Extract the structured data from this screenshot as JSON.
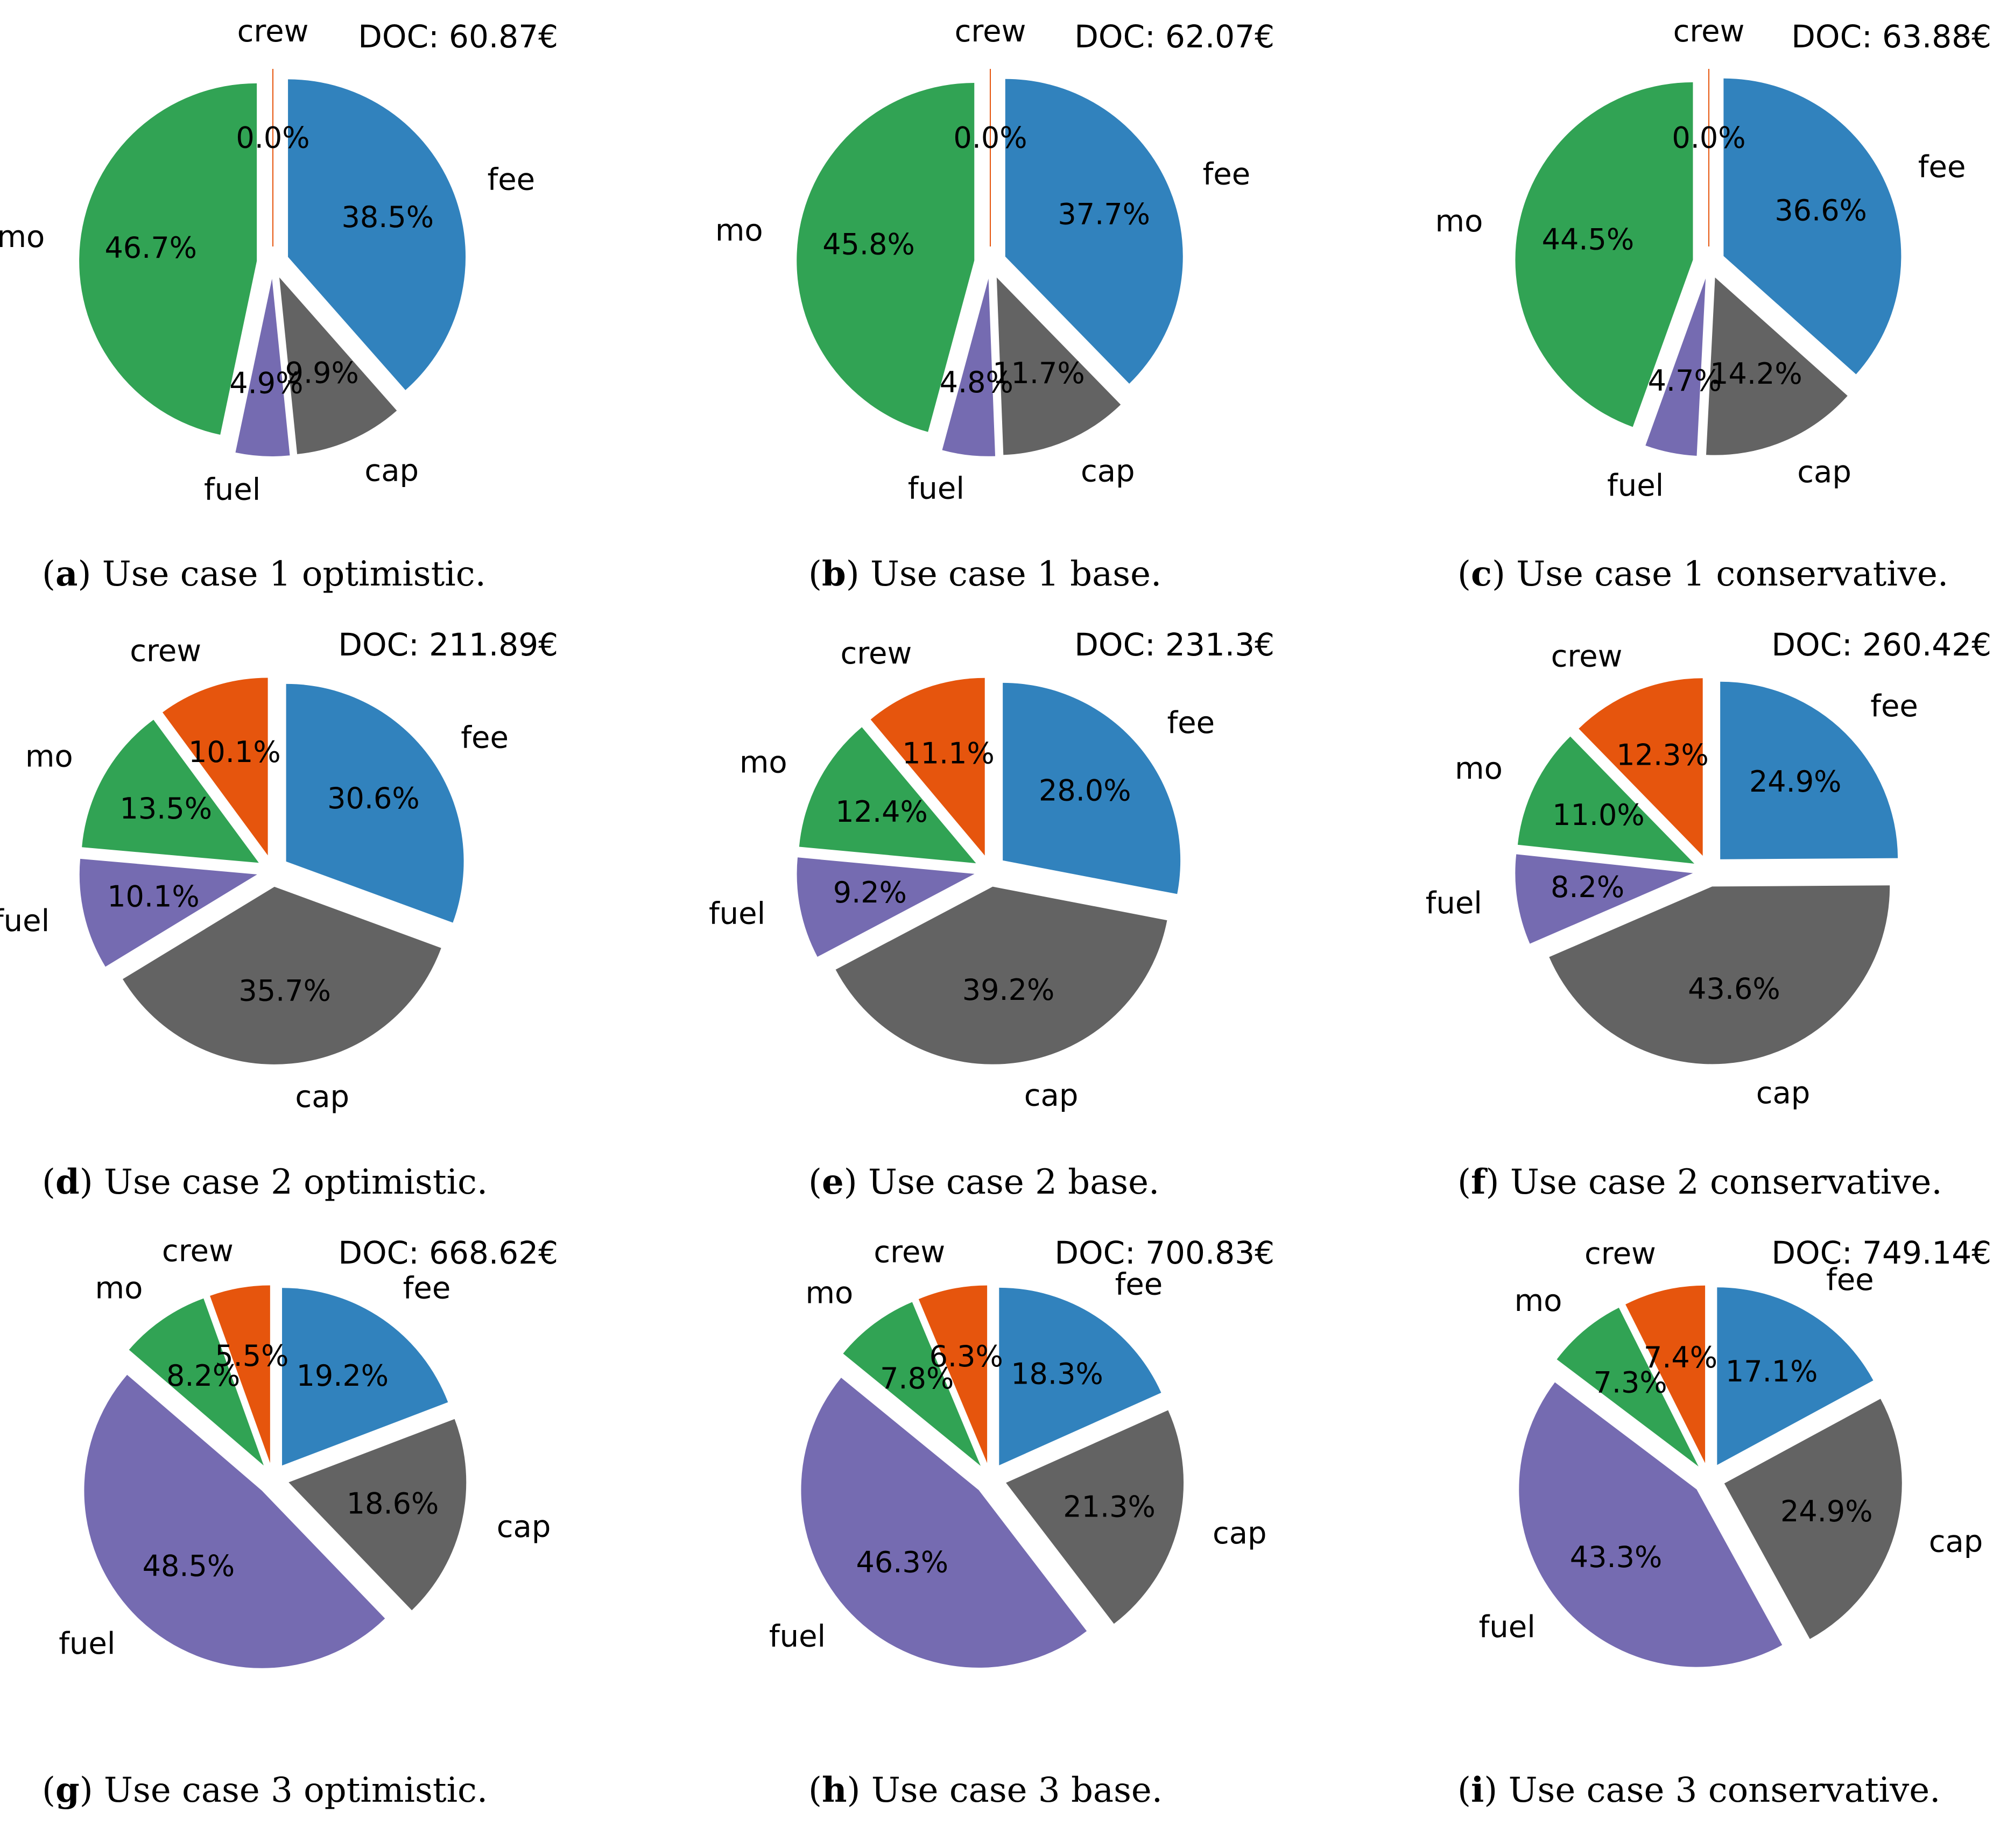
{
  "chart_data": [
    {
      "type": "pie",
      "caption": {
        "letter": "a",
        "text": "Use case 1 optimistic."
      },
      "doc_label": "DOC: 60.87€",
      "slices": [
        {
          "label": "fee",
          "value": 38.5,
          "pct_label": "38.5%",
          "color": "#3182bd"
        },
        {
          "label": "cap",
          "value": 9.9,
          "pct_label": "9.9%",
          "color": "#636363"
        },
        {
          "label": "fuel",
          "value": 4.9,
          "pct_label": "4.9%",
          "color": "#756bb1"
        },
        {
          "label": "mo",
          "value": 46.7,
          "pct_label": "46.7%",
          "color": "#31a354"
        },
        {
          "label": "crew",
          "value": 0.0,
          "pct_label": "0.0%",
          "color": "#e6550d"
        }
      ]
    },
    {
      "type": "pie",
      "caption": {
        "letter": "b",
        "text": "Use case 1 base."
      },
      "doc_label": "DOC: 62.07€",
      "slices": [
        {
          "label": "fee",
          "value": 37.7,
          "pct_label": "37.7%",
          "color": "#3182bd"
        },
        {
          "label": "cap",
          "value": 11.7,
          "pct_label": "11.7%",
          "color": "#636363"
        },
        {
          "label": "fuel",
          "value": 4.8,
          "pct_label": "4.8%",
          "color": "#756bb1"
        },
        {
          "label": "mo",
          "value": 45.8,
          "pct_label": "45.8%",
          "color": "#31a354"
        },
        {
          "label": "crew",
          "value": 0.0,
          "pct_label": "0.0%",
          "color": "#e6550d"
        }
      ]
    },
    {
      "type": "pie",
      "caption": {
        "letter": "c",
        "text": "Use case 1 conservative."
      },
      "doc_label": "DOC: 63.88€",
      "slices": [
        {
          "label": "fee",
          "value": 36.6,
          "pct_label": "36.6%",
          "color": "#3182bd"
        },
        {
          "label": "cap",
          "value": 14.2,
          "pct_label": "14.2%",
          "color": "#636363"
        },
        {
          "label": "fuel",
          "value": 4.7,
          "pct_label": "4.7%",
          "color": "#756bb1"
        },
        {
          "label": "mo",
          "value": 44.5,
          "pct_label": "44.5%",
          "color": "#31a354"
        },
        {
          "label": "crew",
          "value": 0.0,
          "pct_label": "0.0%",
          "color": "#e6550d"
        }
      ]
    },
    {
      "type": "pie",
      "caption": {
        "letter": "d",
        "text": "Use case 2 optimistic."
      },
      "doc_label": "DOC: 211.89€",
      "slices": [
        {
          "label": "fee",
          "value": 30.6,
          "pct_label": "30.6%",
          "color": "#3182bd"
        },
        {
          "label": "cap",
          "value": 35.7,
          "pct_label": "35.7%",
          "color": "#636363"
        },
        {
          "label": "fuel",
          "value": 10.1,
          "pct_label": "10.1%",
          "color": "#756bb1"
        },
        {
          "label": "mo",
          "value": 13.5,
          "pct_label": "13.5%",
          "color": "#31a354"
        },
        {
          "label": "crew",
          "value": 10.1,
          "pct_label": "10.1%",
          "color": "#e6550d"
        }
      ]
    },
    {
      "type": "pie",
      "caption": {
        "letter": "e",
        "text": "Use case 2 base."
      },
      "doc_label": "DOC: 231.3€",
      "slices": [
        {
          "label": "fee",
          "value": 28.0,
          "pct_label": "28.0%",
          "color": "#3182bd"
        },
        {
          "label": "cap",
          "value": 39.2,
          "pct_label": "39.2%",
          "color": "#636363"
        },
        {
          "label": "fuel",
          "value": 9.2,
          "pct_label": "9.2%",
          "color": "#756bb1"
        },
        {
          "label": "mo",
          "value": 12.4,
          "pct_label": "12.4%",
          "color": "#31a354"
        },
        {
          "label": "crew",
          "value": 11.1,
          "pct_label": "11.1%",
          "color": "#e6550d"
        }
      ]
    },
    {
      "type": "pie",
      "caption": {
        "letter": "f",
        "text": "Use case 2 conservative."
      },
      "doc_label": "DOC: 260.42€",
      "slices": [
        {
          "label": "fee",
          "value": 24.9,
          "pct_label": "24.9%",
          "color": "#3182bd"
        },
        {
          "label": "cap",
          "value": 43.6,
          "pct_label": "43.6%",
          "color": "#636363"
        },
        {
          "label": "fuel",
          "value": 8.2,
          "pct_label": "8.2%",
          "color": "#756bb1"
        },
        {
          "label": "mo",
          "value": 11.0,
          "pct_label": "11.0%",
          "color": "#31a354"
        },
        {
          "label": "crew",
          "value": 12.3,
          "pct_label": "12.3%",
          "color": "#e6550d"
        }
      ]
    },
    {
      "type": "pie",
      "caption": {
        "letter": "g",
        "text": "Use case 3 optimistic."
      },
      "doc_label": "DOC: 668.62€",
      "slices": [
        {
          "label": "fee",
          "value": 19.2,
          "pct_label": "19.2%",
          "color": "#3182bd"
        },
        {
          "label": "cap",
          "value": 18.6,
          "pct_label": "18.6%",
          "color": "#636363"
        },
        {
          "label": "fuel",
          "value": 48.5,
          "pct_label": "48.5%",
          "color": "#756bb1"
        },
        {
          "label": "mo",
          "value": 8.2,
          "pct_label": "8.2%",
          "color": "#31a354"
        },
        {
          "label": "crew",
          "value": 5.5,
          "pct_label": "5.5%",
          "color": "#e6550d"
        }
      ]
    },
    {
      "type": "pie",
      "caption": {
        "letter": "h",
        "text": "Use case 3 base."
      },
      "doc_label": "DOC: 700.83€",
      "slices": [
        {
          "label": "fee",
          "value": 18.3,
          "pct_label": "18.3%",
          "color": "#3182bd"
        },
        {
          "label": "cap",
          "value": 21.3,
          "pct_label": "21.3%",
          "color": "#636363"
        },
        {
          "label": "fuel",
          "value": 46.3,
          "pct_label": "46.3%",
          "color": "#756bb1"
        },
        {
          "label": "mo",
          "value": 7.8,
          "pct_label": "7.8%",
          "color": "#31a354"
        },
        {
          "label": "crew",
          "value": 6.3,
          "pct_label": "6.3%",
          "color": "#e6550d"
        }
      ]
    },
    {
      "type": "pie",
      "caption": {
        "letter": "i",
        "text": "Use case 3 conservative."
      },
      "doc_label": "DOC: 749.14€",
      "slices": [
        {
          "label": "fee",
          "value": 17.1,
          "pct_label": "17.1%",
          "color": "#3182bd"
        },
        {
          "label": "cap",
          "value": 24.9,
          "pct_label": "24.9%",
          "color": "#636363"
        },
        {
          "label": "fuel",
          "value": 43.3,
          "pct_label": "43.3%",
          "color": "#756bb1"
        },
        {
          "label": "mo",
          "value": 7.3,
          "pct_label": "7.3%",
          "color": "#31a354"
        },
        {
          "label": "crew",
          "value": 7.4,
          "pct_label": "7.4%",
          "color": "#e6550d"
        }
      ]
    }
  ]
}
